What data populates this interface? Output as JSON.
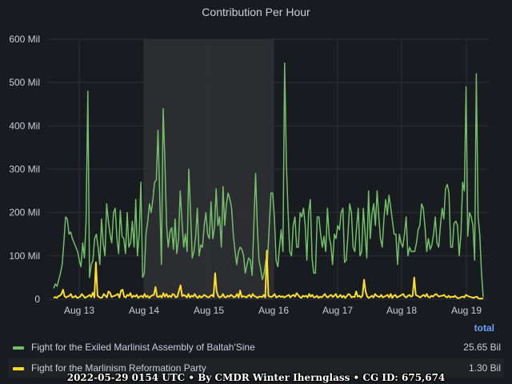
{
  "chart_data": {
    "type": "line",
    "title": "Contribution Per Hour",
    "y_ticks": [
      "0",
      "100 Mil",
      "200 Mil",
      "300 Mil",
      "400 Mil",
      "500 Mil",
      "600 Mil"
    ],
    "ylim": [
      0,
      600
    ],
    "y_unit": "Mil",
    "x_ticks": [
      "Aug 13",
      "Aug 14",
      "Aug 15",
      "Aug 16",
      "Aug 17",
      "Aug 18",
      "Aug 19"
    ],
    "grid": true,
    "highlighted_range": [
      "Aug 14",
      "Aug 16"
    ],
    "legend_placement": "bottom",
    "legend_header": "total",
    "series": [
      {
        "name": "Fight for the Exiled Marlinist Assembly of Baltah'Sine",
        "total": "25.65 Bil",
        "color": "#73bf69",
        "values": [
          25,
          35,
          30,
          45,
          60,
          80,
          130,
          190,
          185,
          150,
          155,
          140,
          130,
          120,
          110,
          90,
          75,
          130,
          95,
          180,
          480,
          50,
          80,
          90,
          140,
          150,
          120,
          80,
          185,
          130,
          100,
          220,
          180,
          150,
          130,
          200,
          210,
          140,
          105,
          205,
          145,
          140,
          105,
          200,
          120,
          130,
          180,
          120,
          230,
          100,
          150,
          270,
          50,
          60,
          150,
          180,
          220,
          200,
          230,
          270,
          275,
          390,
          240,
          80,
          440,
          320,
          170,
          120,
          155,
          165,
          115,
          185,
          105,
          140,
          250,
          180,
          120,
          150,
          110,
          300,
          200,
          95,
          110,
          145,
          210,
          100,
          125,
          120,
          170,
          200,
          150,
          140,
          225,
          140,
          165,
          255,
          170,
          190,
          120,
          260,
          170,
          220,
          245,
          230,
          210,
          150,
          110,
          80,
          110,
          120,
          115,
          100,
          60,
          80,
          95,
          90,
          55,
          170,
          290,
          170,
          90,
          70,
          45,
          60,
          90,
          90,
          170,
          245,
          245,
          190,
          90,
          75,
          120,
          160,
          110,
          545,
          310,
          200,
          110,
          100,
          170,
          190,
          120,
          120,
          200,
          190,
          210,
          170,
          90,
          200,
          230,
          95,
          60,
          60,
          190,
          190,
          150,
          120,
          145,
          110,
          210,
          145,
          125,
          80,
          150,
          140,
          170,
          160,
          200,
          210,
          85,
          90,
          150,
          220,
          200,
          120,
          110,
          165,
          210,
          100,
          110,
          210,
          150,
          95,
          250,
          140,
          195,
          220,
          170,
          250,
          190,
          140,
          120,
          185,
          230,
          195,
          240,
          210,
          180,
          150,
          150,
          80,
          150,
          130,
          120,
          150,
          190,
          100,
          120,
          110,
          110,
          110,
          130,
          160,
          170,
          220,
          210,
          165,
          110,
          140,
          115,
          125,
          150,
          190,
          130,
          120,
          170,
          210,
          185,
          255,
          265,
          245,
          120,
          120,
          175,
          180,
          170,
          100,
          150,
          270,
          250,
          490,
          145,
          200,
          190,
          170,
          90,
          520,
          190,
          150,
          60,
          5
        ]
      },
      {
        "name": "Fight for the Marlinism Reformation Party",
        "total": "1.30 Bil",
        "color": "#fade2a",
        "values": [
          3,
          5,
          3,
          7,
          8,
          12,
          22,
          7,
          4,
          6,
          8,
          12,
          4,
          5,
          8,
          3,
          4,
          6,
          12,
          8,
          3,
          5,
          7,
          10,
          5,
          15,
          4,
          85,
          8,
          5,
          3,
          4,
          12,
          8,
          4,
          18,
          15,
          5,
          7,
          8,
          10,
          12,
          4,
          20,
          22,
          6,
          4,
          10,
          8,
          14,
          4,
          8,
          6,
          10,
          3,
          6,
          8,
          4,
          12,
          5,
          8,
          3,
          7,
          9,
          10,
          28,
          6,
          5,
          8,
          4,
          14,
          6,
          12,
          5,
          8,
          5,
          12,
          10,
          4,
          6,
          20,
          32,
          7,
          10,
          8,
          4,
          12,
          4,
          8,
          6,
          12,
          6,
          3,
          8,
          4,
          6,
          10,
          8,
          5,
          4,
          8,
          10,
          6,
          60,
          18,
          7,
          4,
          6,
          12,
          5,
          4,
          8,
          6,
          10,
          8,
          4,
          6,
          12,
          4,
          20,
          5,
          7,
          6,
          4,
          8,
          10,
          4,
          12,
          7,
          6,
          3,
          6,
          6,
          5,
          10,
          4,
          112,
          8,
          6,
          5,
          8,
          12,
          4,
          6,
          8,
          5,
          7,
          4,
          6,
          8,
          10,
          4,
          8,
          10,
          6,
          14,
          10,
          5,
          3,
          8,
          6,
          8,
          4,
          12,
          6,
          10,
          4,
          5,
          8,
          3,
          6,
          4,
          8,
          12,
          6,
          4,
          8,
          10,
          5,
          8,
          12,
          4,
          6,
          10,
          4,
          8,
          3,
          7,
          12,
          10,
          4,
          6,
          5,
          18,
          6,
          8,
          4,
          8,
          45,
          18,
          6,
          3,
          5,
          8,
          4,
          12,
          8,
          6,
          5,
          10,
          4,
          6,
          8,
          10,
          4,
          12,
          3,
          8,
          10,
          4,
          6,
          8,
          10,
          12,
          6,
          4,
          8,
          10,
          6,
          8,
          50,
          10,
          8,
          6,
          4,
          8,
          10,
          6,
          12,
          5,
          4,
          8,
          6,
          10,
          12,
          8,
          6,
          8,
          8,
          10,
          6,
          4,
          8,
          4,
          6,
          5,
          8,
          4,
          2,
          3,
          5,
          6,
          4,
          10,
          8,
          6,
          5,
          4,
          3,
          5,
          6,
          2,
          1,
          2,
          1
        ]
      }
    ]
  },
  "footer_text": "2022-05-29 0154 UTC • By CMDR Winter Iherngla​ss • CG ID: 675,674"
}
